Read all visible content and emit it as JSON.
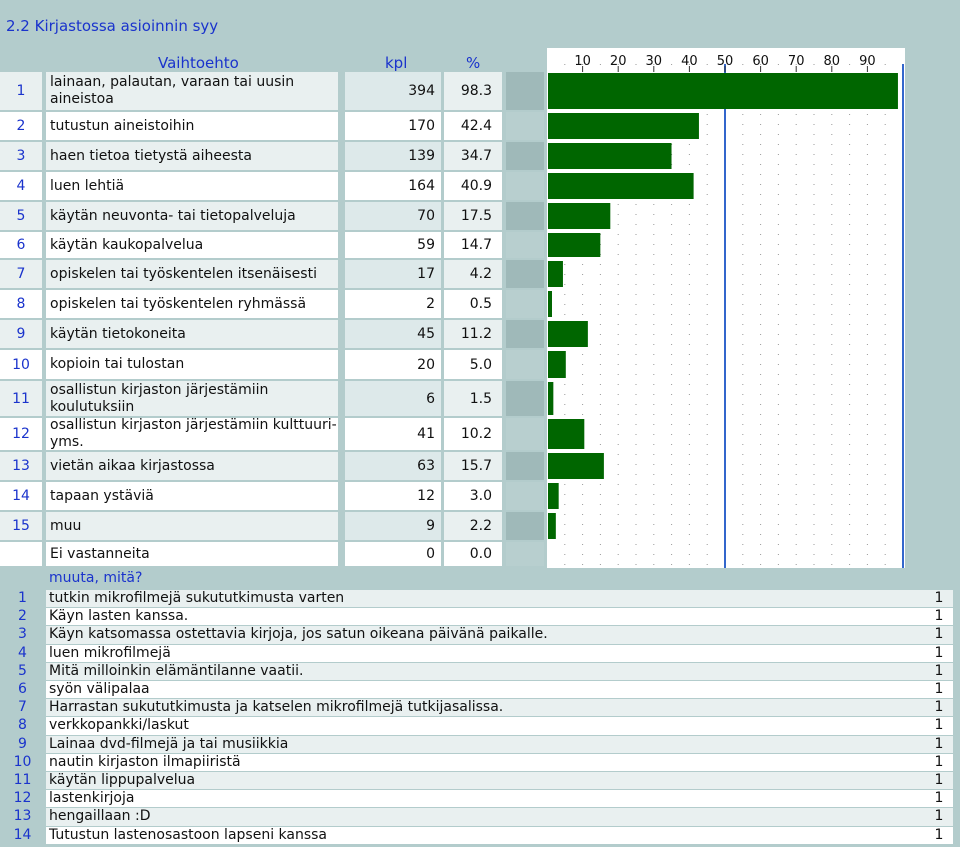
{
  "title": "2.2 Kirjastossa asioinnin syy",
  "header": {
    "option": "Vaihtoehto",
    "kpl": "kpl",
    "pct": "%"
  },
  "axis_ticks": [
    "10",
    "20",
    "30",
    "40",
    "50",
    "60",
    "70",
    "80",
    "90"
  ],
  "rows": [
    {
      "num": "1",
      "label": "lainaan, palautan, varaan tai uusin aineistoa",
      "kpl": "394",
      "pct": "98.3"
    },
    {
      "num": "2",
      "label": "tutustun aineistoihin",
      "kpl": "170",
      "pct": "42.4"
    },
    {
      "num": "3",
      "label": "haen tietoa tietystä aiheesta",
      "kpl": "139",
      "pct": "34.7"
    },
    {
      "num": "4",
      "label": "luen lehtiä",
      "kpl": "164",
      "pct": "40.9"
    },
    {
      "num": "5",
      "label": "käytän neuvonta- tai tietopalveluja",
      "kpl": "70",
      "pct": "17.5"
    },
    {
      "num": "6",
      "label": "käytän kaukopalvelua",
      "kpl": "59",
      "pct": "14.7"
    },
    {
      "num": "7",
      "label": "opiskelen tai työskentelen itsenäisesti",
      "kpl": "17",
      "pct": "4.2"
    },
    {
      "num": "8",
      "label": "opiskelen tai työskentelen ryhmässä",
      "kpl": "2",
      "pct": "0.5"
    },
    {
      "num": "9",
      "label": "käytän tietokoneita",
      "kpl": "45",
      "pct": "11.2"
    },
    {
      "num": "10",
      "label": "kopioin tai tulostan",
      "kpl": "20",
      "pct": "5.0"
    },
    {
      "num": "11",
      "label": "osallistun kirjaston järjestämiin koulutuksiin",
      "kpl": "6",
      "pct": "1.5"
    },
    {
      "num": "12",
      "label": "osallistun kirjaston järjestämiin kulttuuri- yms.",
      "kpl": "41",
      "pct": "10.2"
    },
    {
      "num": "13",
      "label": "vietän aikaa kirjastossa",
      "kpl": "63",
      "pct": "15.7"
    },
    {
      "num": "14",
      "label": "tapaan ystäviä",
      "kpl": "12",
      "pct": "3.0"
    },
    {
      "num": "15",
      "label": "muu",
      "kpl": "9",
      "pct": "2.2"
    },
    {
      "num": "",
      "label": "Ei vastanneita",
      "kpl": "0",
      "pct": "0.0"
    }
  ],
  "other_title": "muuta, mitä?",
  "other_answers": [
    {
      "num": "1",
      "text": "tutkin mikrofilmejä sukututkimusta varten",
      "count": "1"
    },
    {
      "num": "2",
      "text": "Käyn lasten kanssa.",
      "count": "1"
    },
    {
      "num": "3",
      "text": "Käyn katsomassa ostettavia kirjoja, jos satun oikeana päivänä paikalle.",
      "count": "1"
    },
    {
      "num": "4",
      "text": "luen mikrofilmejä",
      "count": "1"
    },
    {
      "num": "5",
      "text": "Mitä milloinkin elämäntilanne vaatii.",
      "count": "1"
    },
    {
      "num": "6",
      "text": "syön välipalaa",
      "count": "1"
    },
    {
      "num": "7",
      "text": "Harrastan sukututkimusta ja katselen mikrofilmejä tutkijasalissa.",
      "count": "1"
    },
    {
      "num": "8",
      "text": "verkkopankki/laskut",
      "count": "1"
    },
    {
      "num": "9",
      "text": "Lainaa dvd-filmejä ja tai musiikkia",
      "count": "1"
    },
    {
      "num": "10",
      "text": "nautin kirjaston ilmapiiristä",
      "count": "1"
    },
    {
      "num": "11",
      "text": "käytän lippupalvelua",
      "count": "1"
    },
    {
      "num": "12",
      "text": "lastenkirjoja",
      "count": "1"
    },
    {
      "num": "13",
      "text": "hengaillaan :D",
      "count": "1"
    },
    {
      "num": "14",
      "text": "Tutustun lastenosastoon lapseni kanssa",
      "count": "1"
    }
  ],
  "colors": {
    "bar": "#006600",
    "band": "#b3cccc",
    "light": "#e9f0f0",
    "pale": "#dde9ea",
    "white": "#ffffff",
    "text_blue": "#1a33cc",
    "guide_blue": "#3366cc"
  },
  "chart_data": {
    "type": "bar",
    "orientation": "horizontal",
    "categories": [
      "1",
      "2",
      "3",
      "4",
      "5",
      "6",
      "7",
      "8",
      "9",
      "10",
      "11",
      "12",
      "13",
      "14",
      "15",
      "Ei vastanneita"
    ],
    "values": [
      98.3,
      42.4,
      34.7,
      40.9,
      17.5,
      14.7,
      4.2,
      0.5,
      11.2,
      5.0,
      1.5,
      10.2,
      15.7,
      3.0,
      2.2,
      0.0
    ],
    "xlim": [
      0,
      100
    ],
    "major_ticks": [
      10,
      20,
      30,
      40,
      50,
      60,
      70,
      80,
      90
    ],
    "reference_lines": [
      50,
      100
    ],
    "grid": true,
    "title": "",
    "xlabel": "",
    "ylabel": ""
  }
}
